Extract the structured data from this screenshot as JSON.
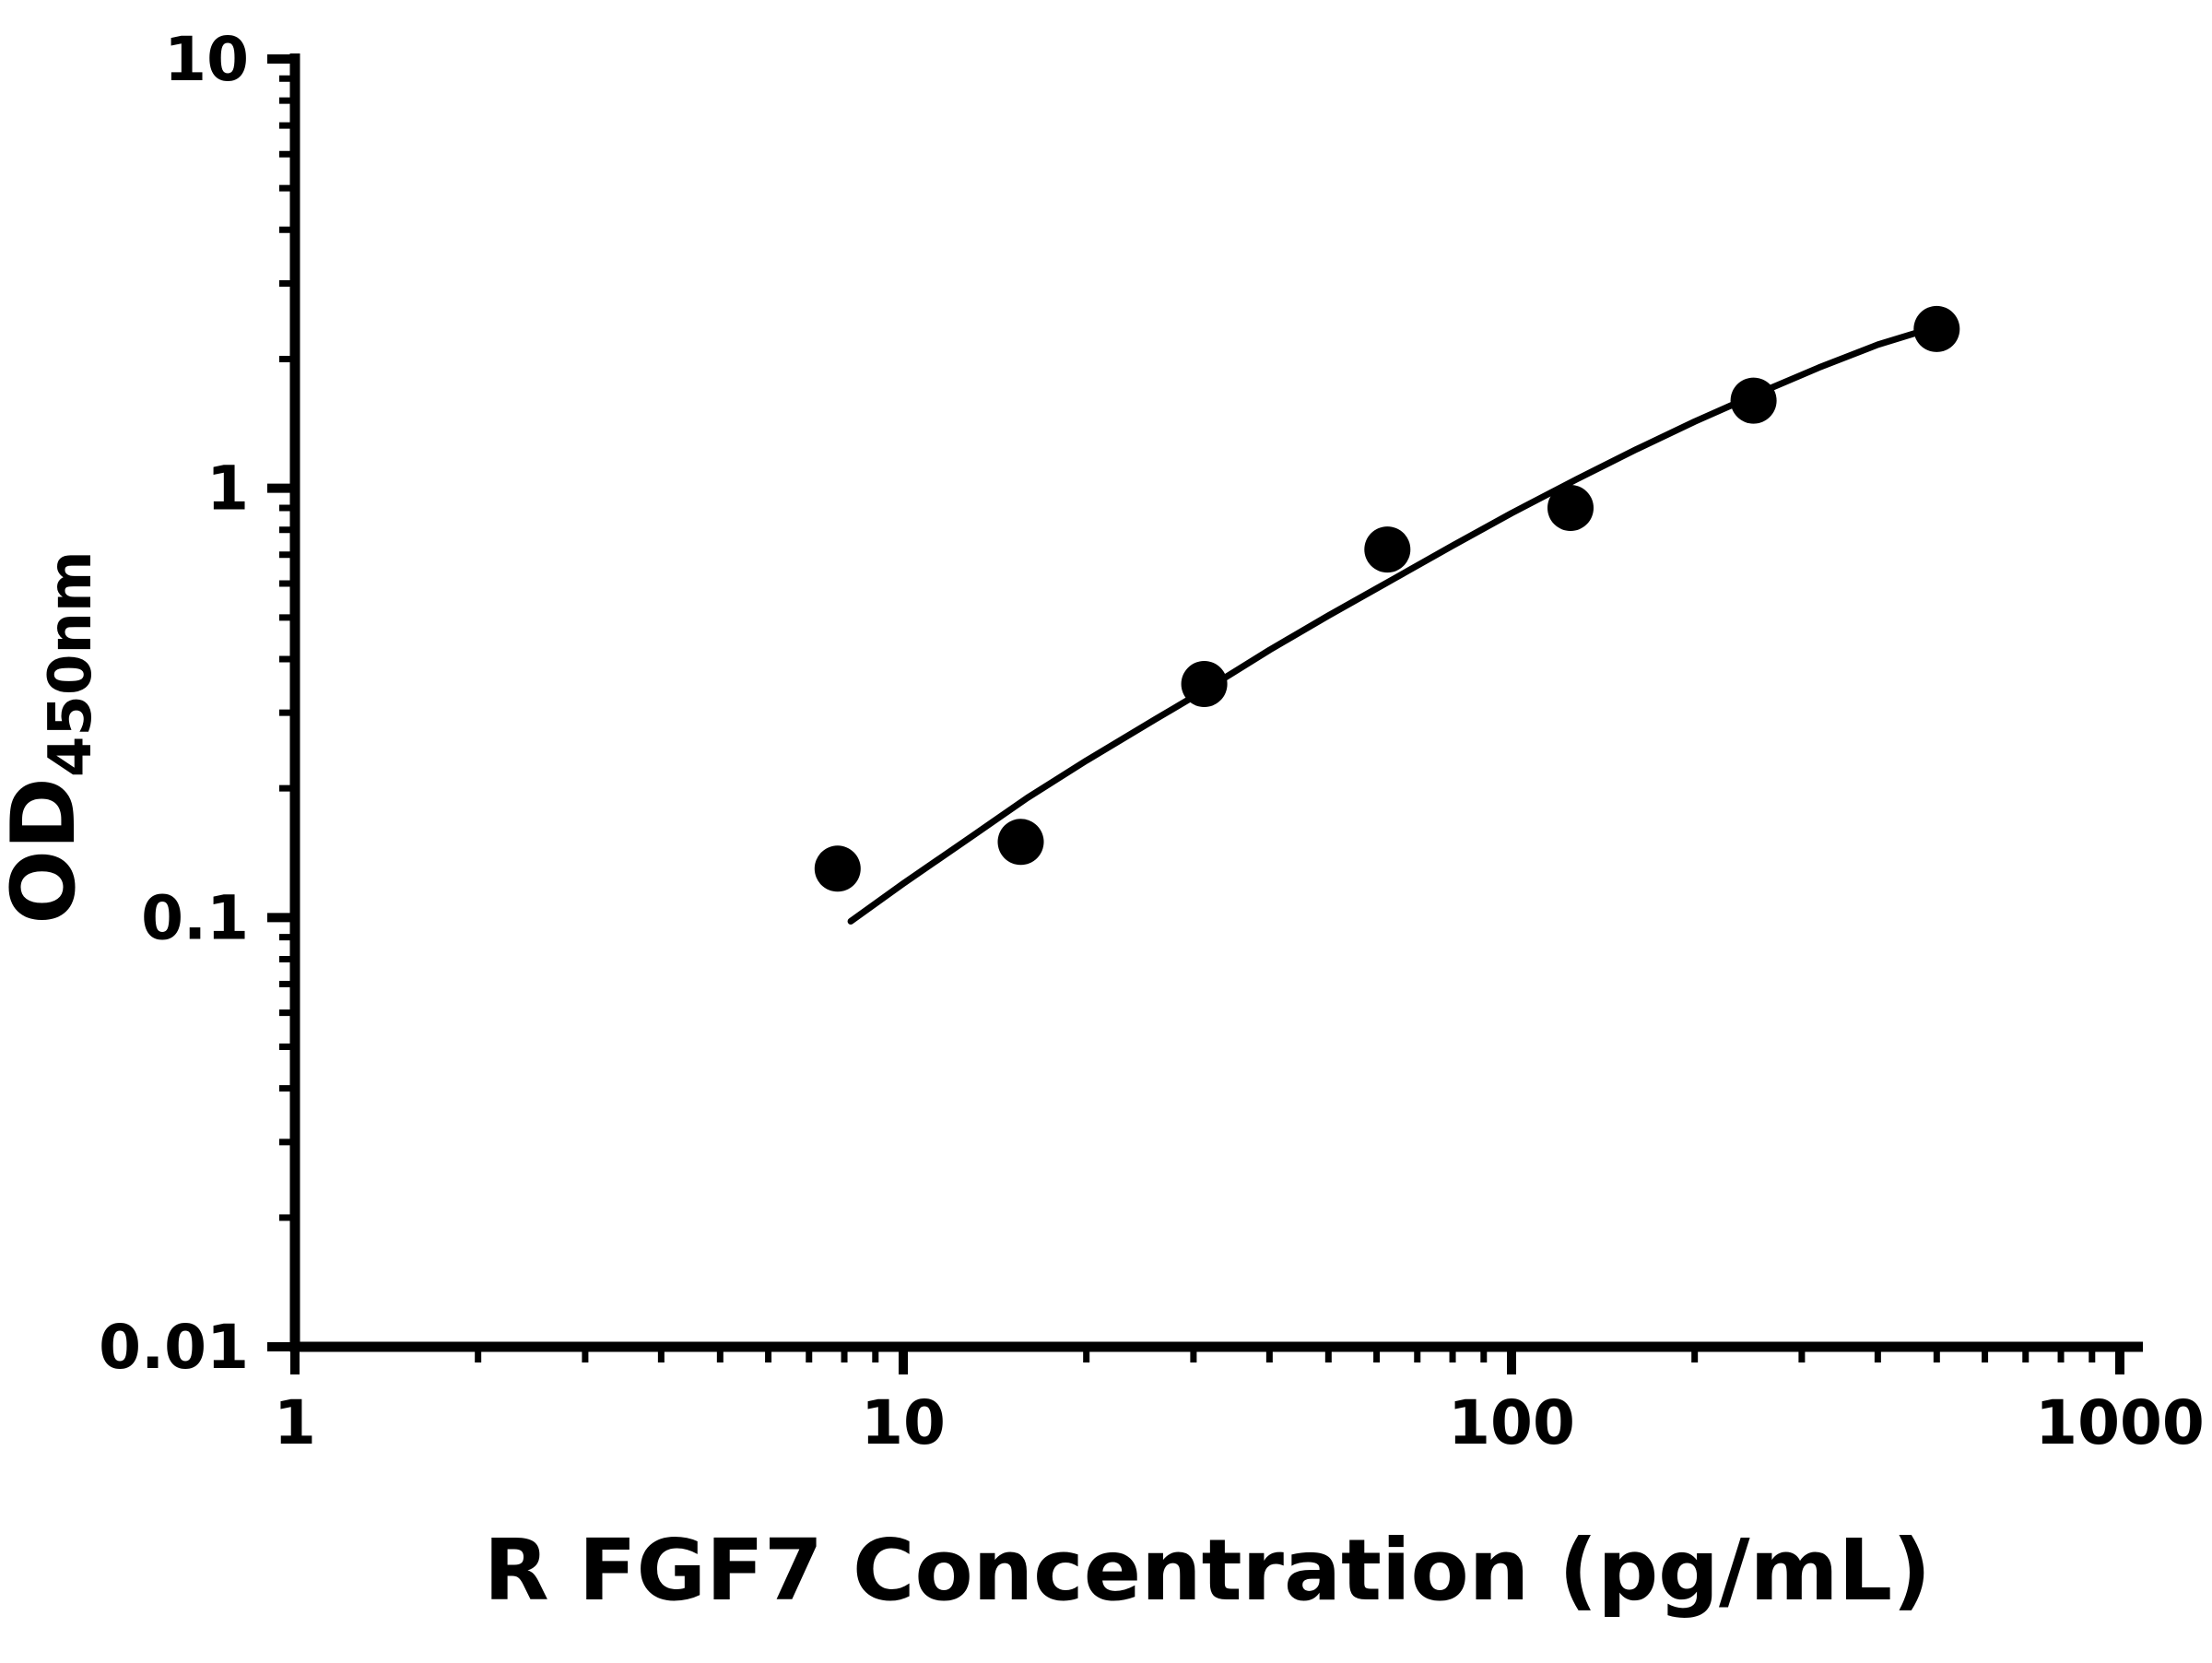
{
  "chart_data": {
    "type": "scatter",
    "title": "",
    "xlabel": "R FGF7 Concentration (pg/mL)",
    "ylabel_main": "OD",
    "ylabel_sub": "450nm",
    "x_scale": "log",
    "y_scale": "log",
    "xlim": [
      1,
      1000
    ],
    "ylim": [
      0.01,
      10
    ],
    "x_ticks": [
      1,
      10,
      100,
      1000
    ],
    "x_tick_labels": [
      "1",
      "10",
      "100",
      "1000"
    ],
    "y_ticks": [
      0.01,
      0.1,
      1,
      10
    ],
    "y_tick_labels": [
      "0.01",
      "0.1",
      "1",
      "10"
    ],
    "grid": false,
    "legend": null,
    "marker_color": "#000000",
    "line_color": "#000000",
    "axis_color": "#000000",
    "points": [
      {
        "x": 7.8,
        "y": 0.13
      },
      {
        "x": 15.6,
        "y": 0.15
      },
      {
        "x": 31.25,
        "y": 0.35
      },
      {
        "x": 62.5,
        "y": 0.72
      },
      {
        "x": 125,
        "y": 0.9
      },
      {
        "x": 250,
        "y": 1.6
      },
      {
        "x": 500,
        "y": 2.35
      }
    ],
    "fit_curve": [
      {
        "x": 8.2,
        "y": 0.098
      },
      {
        "x": 10,
        "y": 0.12
      },
      {
        "x": 13,
        "y": 0.155
      },
      {
        "x": 16,
        "y": 0.19
      },
      {
        "x": 20,
        "y": 0.232
      },
      {
        "x": 26,
        "y": 0.29
      },
      {
        "x": 32,
        "y": 0.345
      },
      {
        "x": 40,
        "y": 0.42
      },
      {
        "x": 50,
        "y": 0.505
      },
      {
        "x": 64,
        "y": 0.615
      },
      {
        "x": 80,
        "y": 0.735
      },
      {
        "x": 100,
        "y": 0.875
      },
      {
        "x": 128,
        "y": 1.05
      },
      {
        "x": 160,
        "y": 1.23
      },
      {
        "x": 200,
        "y": 1.43
      },
      {
        "x": 256,
        "y": 1.67
      },
      {
        "x": 320,
        "y": 1.91
      },
      {
        "x": 400,
        "y": 2.16
      },
      {
        "x": 500,
        "y": 2.38
      }
    ]
  }
}
